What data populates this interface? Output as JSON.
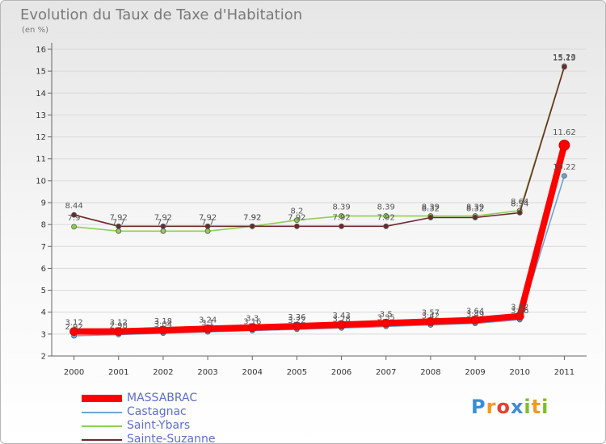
{
  "header": {
    "title": "Evolution du Taux de Taxe d'Habitation",
    "unit": "(en %)"
  },
  "logo": {
    "text": "Proxiti",
    "colors": [
      "#3a8fd4",
      "#f29a1f",
      "#e83f2f",
      "#3a8fd4",
      "#7cbf2a",
      "#f29a1f",
      "#7cbf2a"
    ]
  },
  "chart_data": {
    "type": "line",
    "x": [
      "2000",
      "2001",
      "2002",
      "2003",
      "2004",
      "2005",
      "2006",
      "2007",
      "2008",
      "2009",
      "2010",
      "2011"
    ],
    "yticks": [
      2,
      3,
      4,
      5,
      6,
      7,
      8,
      9,
      10,
      11,
      12,
      13,
      14,
      15,
      16
    ],
    "ylim": [
      2,
      16
    ],
    "title": "Evolution du Taux de Taxe d'Habitation",
    "ylabel": "(en %)",
    "legend_position": "bottom-left",
    "series": [
      {
        "name": "MASSABRAC",
        "color": "#ff0000",
        "values": [
          3.12,
          3.12,
          3.18,
          3.24,
          3.3,
          3.36,
          3.43,
          3.5,
          3.57,
          3.64,
          3.82,
          11.62
        ],
        "labels": [
          "3.12",
          "3.12",
          "3.18",
          "3.24",
          "3.3",
          "3.36",
          "3.43",
          "3.5",
          "3.57",
          "3.64",
          "3.82",
          "11.62"
        ]
      },
      {
        "name": "Castagnac",
        "color": "#6aa5d6",
        "values": [
          2.92,
          2.98,
          3.04,
          3.1,
          3.16,
          3.22,
          3.28,
          3.35,
          3.42,
          3.49,
          3.66,
          10.22
        ],
        "labels": [
          "2.92",
          "2.98",
          "3.04",
          "3.1",
          "3.16",
          "3.22",
          "3.28",
          "3.35",
          "3.42",
          "3.49",
          "3.66",
          "10.22"
        ]
      },
      {
        "name": "Saint-Ybars",
        "color": "#8fd14f",
        "values": [
          7.9,
          7.7,
          7.7,
          7.7,
          7.92,
          8.2,
          8.39,
          8.39,
          8.39,
          8.39,
          8.64,
          15.23
        ],
        "labels": [
          "7.9",
          "7.7",
          "7.7",
          "7.7",
          "7.92",
          "8.2",
          "8.39",
          "8.39",
          "8.39",
          "8.39",
          "8.64",
          "15.23"
        ]
      },
      {
        "name": "Sainte-Suzanne",
        "color": "#6b2a2a",
        "values": [
          8.44,
          7.92,
          7.92,
          7.92,
          7.92,
          7.92,
          7.92,
          7.92,
          8.32,
          8.32,
          8.54,
          15.19
        ],
        "labels": [
          "8.44",
          "7.92",
          "7.92",
          "7.92",
          "7.92",
          "7.92",
          "7.92",
          "7.92",
          "8.32",
          "8.32",
          "8.54",
          "15.19"
        ]
      }
    ]
  }
}
